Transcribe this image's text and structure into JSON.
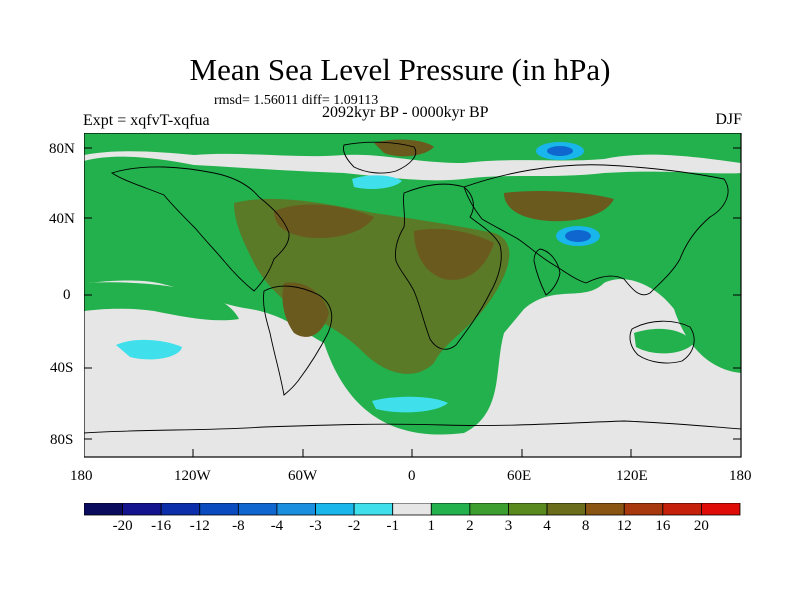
{
  "title": "Mean Sea Level Pressure (in hPa)",
  "stats_line": "rmsd= 1.56011 diff= 1.09113",
  "subtitle": "2092kyr BP - 0000kyr BP",
  "experiment_label": "Expt = xqfvT-xqfua",
  "season": "DJF",
  "lat_axis_labels": [
    "80N",
    "40N",
    "0",
    "40S",
    "80S"
  ],
  "lon_axis_labels": [
    "180",
    "120W",
    "60W",
    "0",
    "60E",
    "120E",
    "180"
  ],
  "colorbar": {
    "tick_labels": [
      "-20",
      "-16",
      "-12",
      "-8",
      "-4",
      "-3",
      "-2",
      "-1",
      "1",
      "2",
      "3",
      "4",
      "8",
      "12",
      "16",
      "20"
    ],
    "colors": [
      "#0b0b5e",
      "#14148f",
      "#0c2eab",
      "#0a4cc0",
      "#1066cf",
      "#1a8fe0",
      "#18b6ea",
      "#3fe0ec",
      "#e6e6e6",
      "#22b14c",
      "#3c9e2e",
      "#5a8a1e",
      "#6b6d1a",
      "#8a5412",
      "#a8380e",
      "#c4200a",
      "#de0b06"
    ]
  },
  "map_colors": {
    "neutral": "#e6e6e6",
    "green": "#22b14c",
    "dark_green": "#3c9e2e",
    "olive": "#5a7a28",
    "brown": "#6b5a1e",
    "dark_brown": "#7a4a14",
    "cyan": "#3fe0ec",
    "light_blue": "#18b6ea",
    "blue": "#1066cf",
    "coast": "#000000"
  }
}
